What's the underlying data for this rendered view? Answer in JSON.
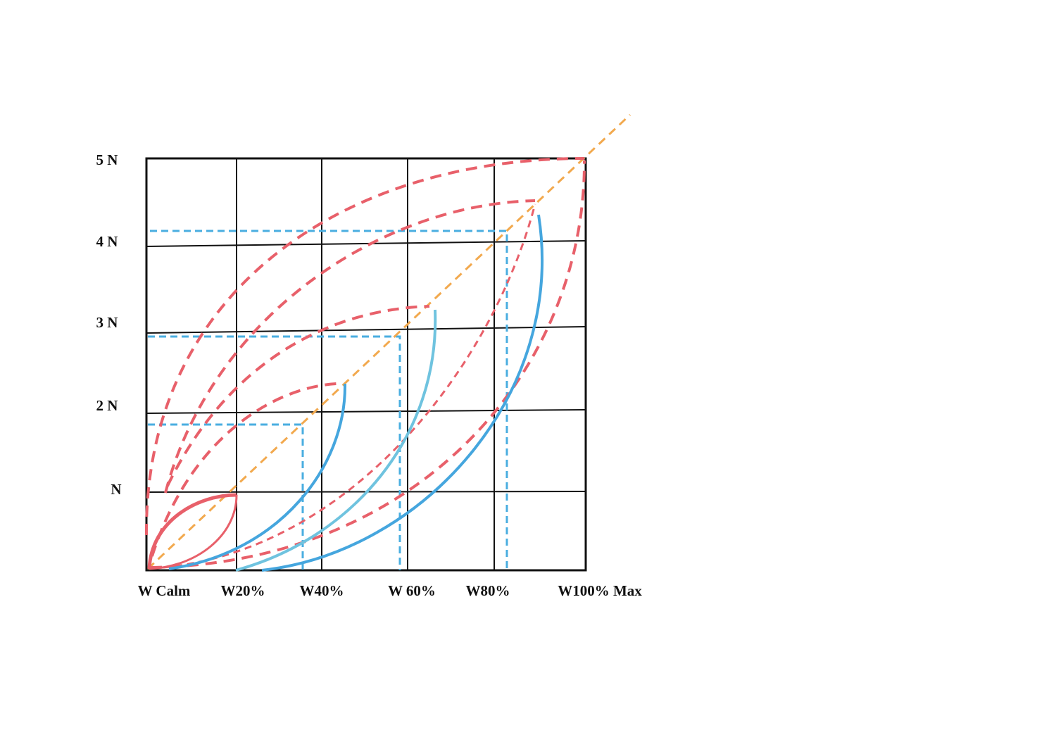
{
  "y_axis": {
    "labels": [
      "5 N",
      "4 N",
      "3 N",
      "2 N",
      "N"
    ]
  },
  "x_axis": {
    "labels": [
      "W Calm",
      "W20%",
      "W40%",
      "W 60%",
      "W80%",
      "W100% Max"
    ]
  }
}
